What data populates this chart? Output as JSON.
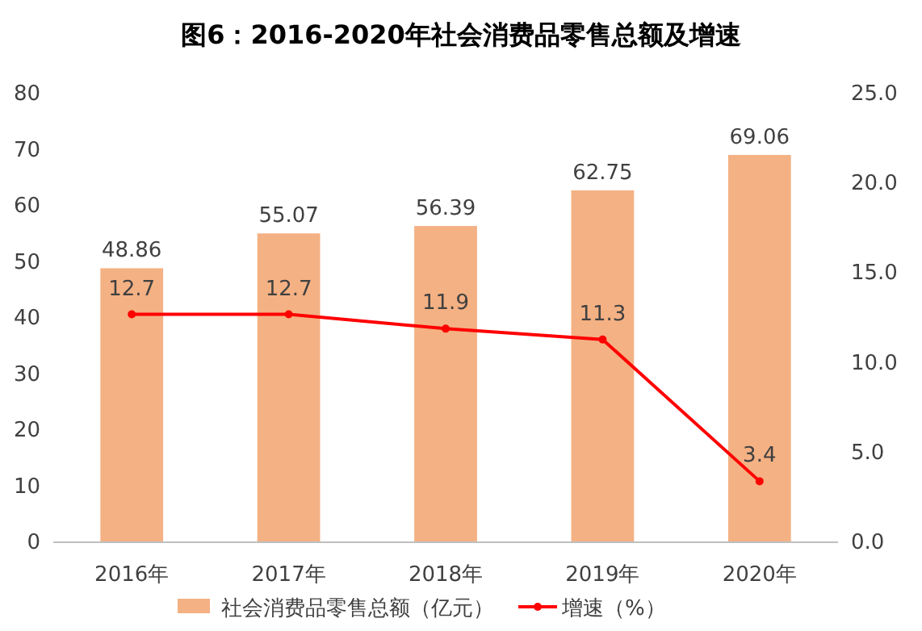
{
  "chart_data": {
    "type": "bar",
    "title": "图6：2016-2020年社会消费品零售总额及增速",
    "categories": [
      "2016年",
      "2017年",
      "2018年",
      "2019年",
      "2020年"
    ],
    "series": [
      {
        "name": "社会消费品零售总额（亿元）",
        "color": "#f4b183",
        "values": [
          48.86,
          55.07,
          56.39,
          62.75,
          69.06
        ]
      },
      {
        "name": "增速（%）",
        "type": "line",
        "axis": "y2",
        "color": "#ff0000",
        "values": [
          12.7,
          12.7,
          11.9,
          11.3,
          3.4
        ]
      }
    ],
    "ylim": [
      0,
      80
    ],
    "yticks": [
      0,
      10,
      20,
      30,
      40,
      50,
      60,
      70,
      80
    ],
    "y2lim": [
      0,
      25
    ],
    "y2ticks": [
      {
        "value": 0,
        "label": "0.0"
      },
      {
        "value": 5,
        "label": "5.0"
      },
      {
        "value": 10,
        "label": "10.0"
      },
      {
        "value": 15,
        "label": "15.0"
      },
      {
        "value": 20,
        "label": "20.0"
      },
      {
        "value": 25,
        "label": "25.0"
      }
    ],
    "data_labels": true,
    "legend": "bottom",
    "marker": "circle",
    "line_style": "solid",
    "grid": false
  }
}
